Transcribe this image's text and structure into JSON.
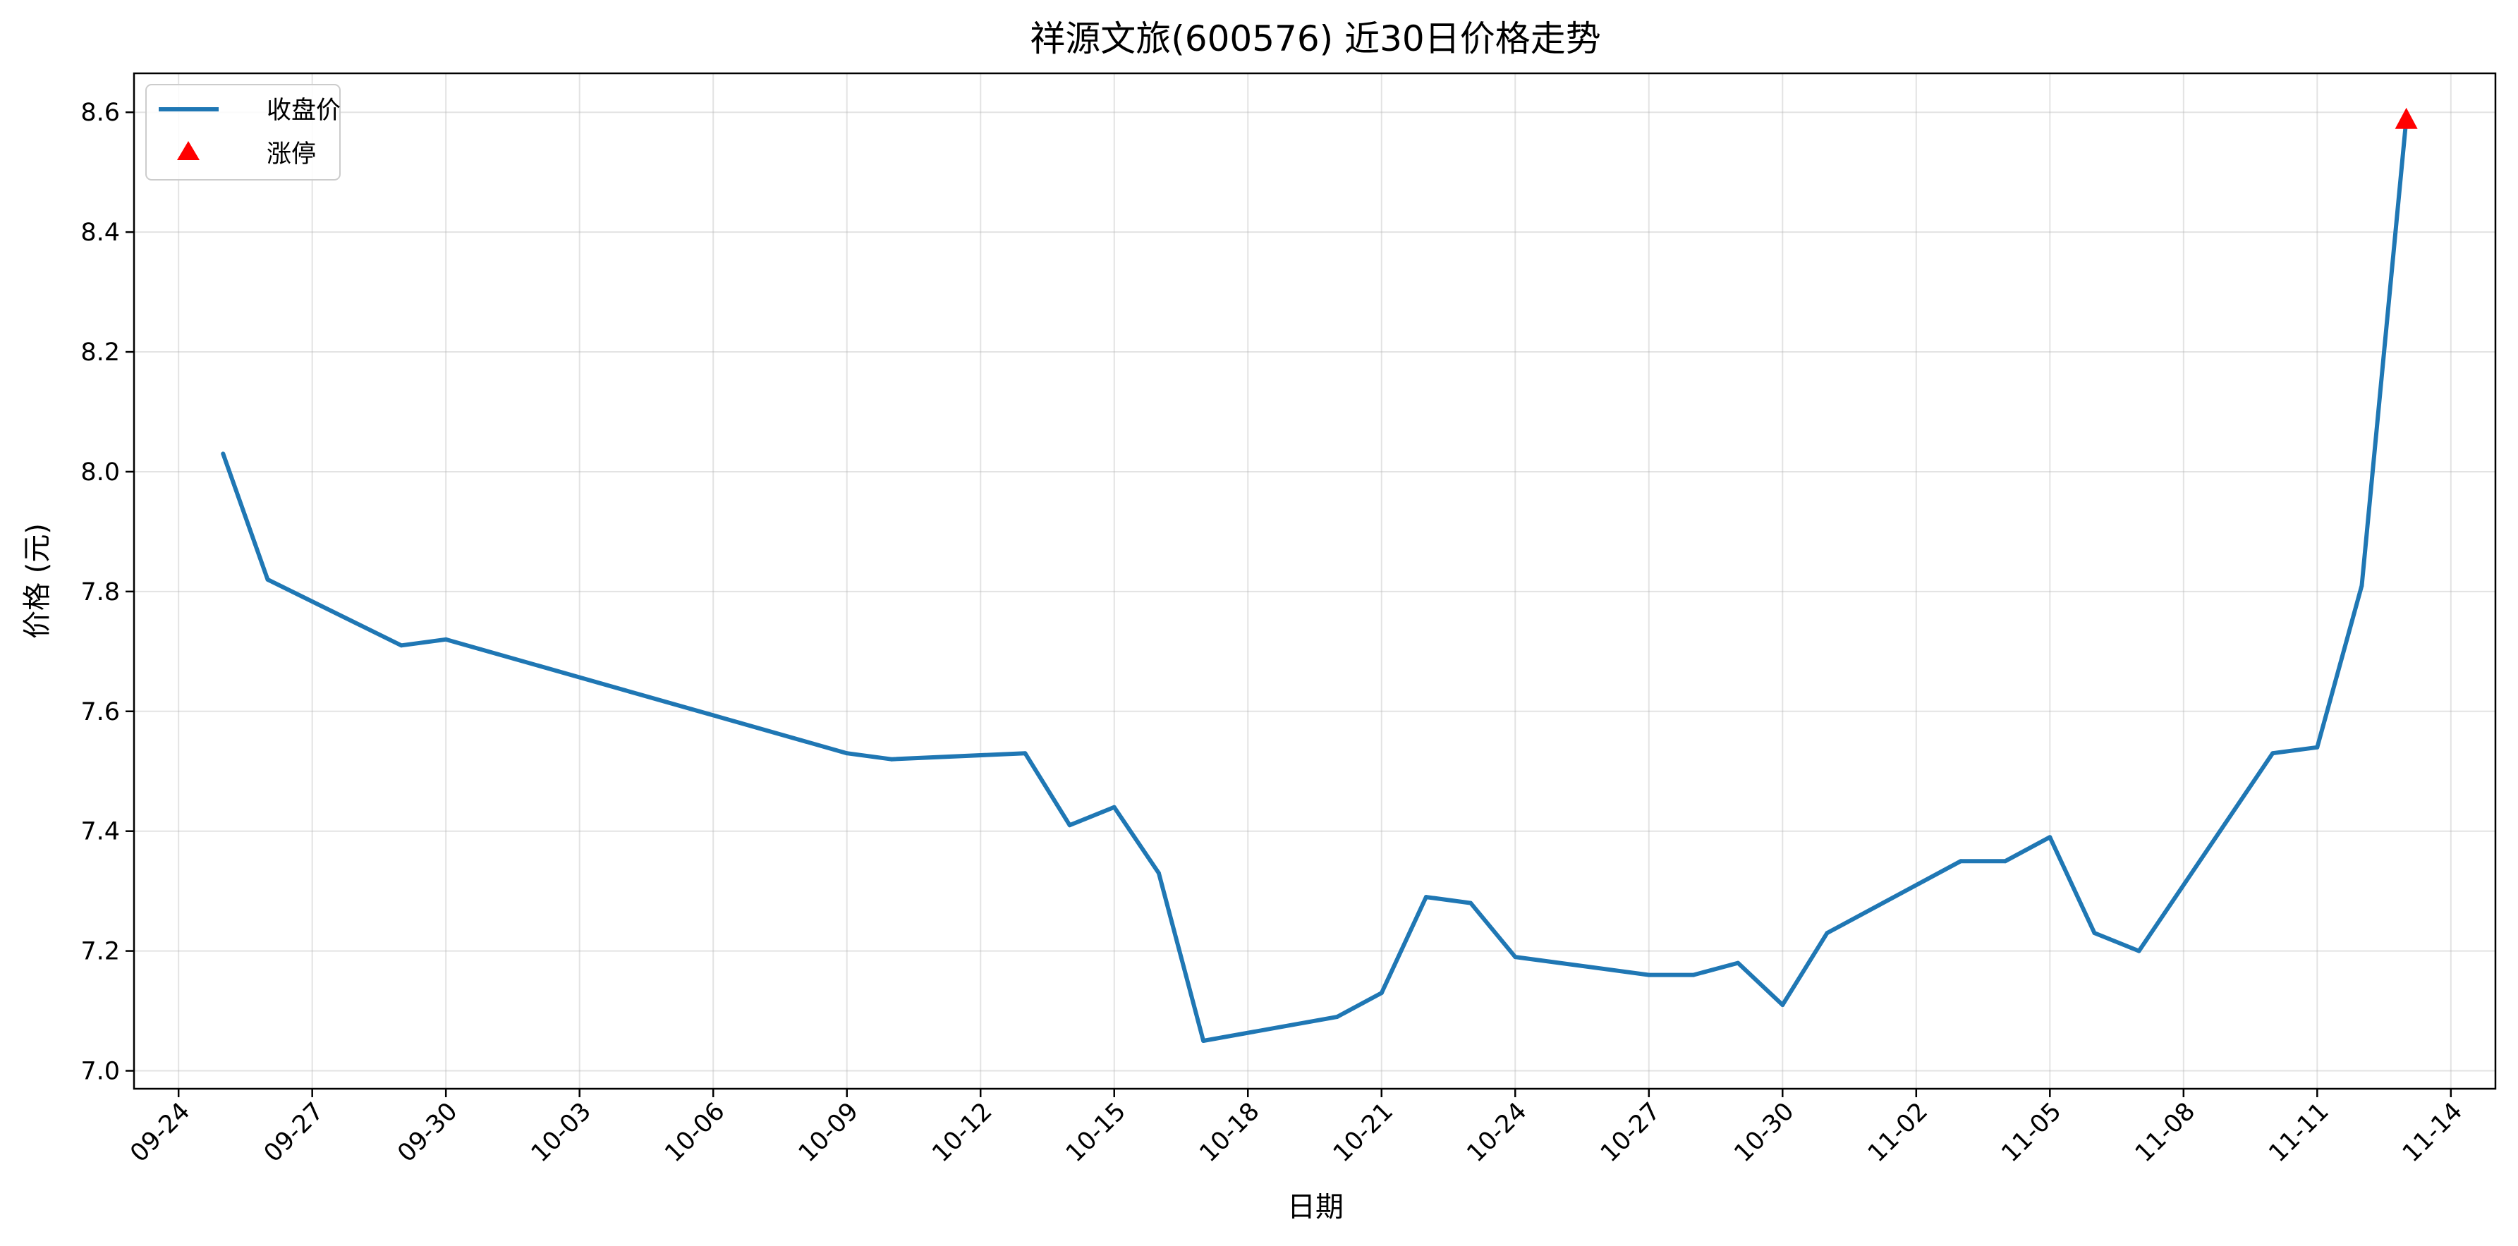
{
  "chart_data": {
    "type": "line",
    "title": "祥源文旅(600576) 近30日价格走势",
    "xlabel": "日期",
    "ylabel": "价格 (元)",
    "x_tick_labels": [
      "09-24",
      "09-27",
      "09-30",
      "10-03",
      "10-06",
      "10-09",
      "10-12",
      "10-15",
      "10-18",
      "10-21",
      "10-24",
      "10-27",
      "10-30",
      "11-02",
      "11-05",
      "11-08",
      "11-11",
      "11-14"
    ],
    "y_tick_labels": [
      "7.0",
      "7.2",
      "7.4",
      "7.6",
      "7.8",
      "8.0",
      "8.2",
      "8.4",
      "8.6"
    ],
    "ylim": [
      6.97,
      8.665
    ],
    "xlim": [
      "2024-09-23",
      "2024-11-15"
    ],
    "grid": true,
    "legend_position": "top-left",
    "series": [
      {
        "name": "收盘价",
        "color": "#1f77b4",
        "x": [
          "2024-09-25",
          "2024-09-26",
          "2024-09-29",
          "2024-09-30",
          "2024-10-09",
          "2024-10-10",
          "2024-10-13",
          "2024-10-14",
          "2024-10-15",
          "2024-10-16",
          "2024-10-17",
          "2024-10-20",
          "2024-10-21",
          "2024-10-22",
          "2024-10-23",
          "2024-10-24",
          "2024-10-27",
          "2024-10-28",
          "2024-10-29",
          "2024-10-30",
          "2024-10-31",
          "2024-11-03",
          "2024-11-04",
          "2024-11-05",
          "2024-11-06",
          "2024-11-07",
          "2024-11-10",
          "2024-11-11",
          "2024-11-12",
          "2024-11-13"
        ],
        "y": [
          8.03,
          7.82,
          7.71,
          7.72,
          7.53,
          7.52,
          7.53,
          7.41,
          7.44,
          7.33,
          7.05,
          7.09,
          7.13,
          7.29,
          7.28,
          7.19,
          7.16,
          7.16,
          7.18,
          7.11,
          7.23,
          7.35,
          7.35,
          7.39,
          7.23,
          7.2,
          7.53,
          7.54,
          7.81,
          8.59
        ]
      }
    ],
    "markers": {
      "name": "涨停",
      "color": "#ff0000",
      "shape": "triangle-up",
      "x": [
        "2024-11-13"
      ],
      "y": [
        8.59
      ]
    }
  }
}
